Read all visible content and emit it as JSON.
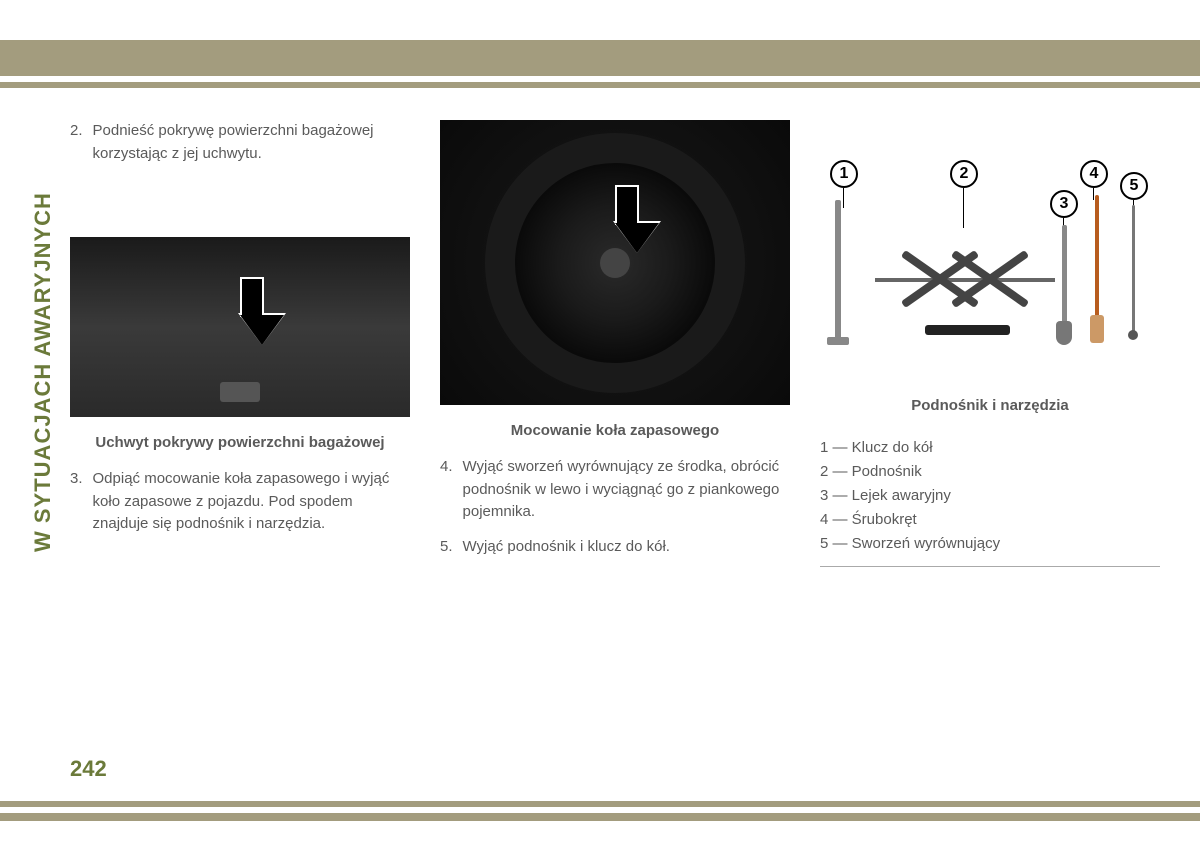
{
  "page": {
    "side_title": "W SYTUACJACH AWARYJNYCH",
    "page_number": "242"
  },
  "colors": {
    "accent": "#6b7a3a",
    "bar": "#a39c7e",
    "text": "#5a5a5a"
  },
  "column1": {
    "step2_num": "2.",
    "step2_text": "Podnieść pokrywę powierzchni bagażowej korzystając z jej uchwytu.",
    "caption": "Uchwyt pokrywy powierzchni bagażowej",
    "step3_num": "3.",
    "step3_text": "Odpiąć mocowanie koła zapasowego i wyjąć koło zapasowe z pojazdu. Pod spodem znajduje się podnośnik i narzędzia."
  },
  "column2": {
    "caption": "Mocowanie koła zapasowego",
    "step4_num": "4.",
    "step4_text": "Wyjąć sworzeń wyrównujący ze środka, obrócić podnośnik w lewo i wyciągnąć go z piankowego pojemnika.",
    "step5_num": "5.",
    "step5_text": "Wyjąć podnośnik i klucz do kół."
  },
  "column3": {
    "caption": "Podnośnik i narzędzia",
    "labels": {
      "l1": "1",
      "l2": "2",
      "l3": "3",
      "l4": "4",
      "l5": "5"
    },
    "legend": {
      "item1": "1 — Klucz do kół",
      "item2": "2 — Podnośnik",
      "item3": "3 — Lejek awaryjny",
      "item4": "4 — Śrubokręt",
      "item5": "5 — Sworzeń wyrównujący"
    }
  }
}
